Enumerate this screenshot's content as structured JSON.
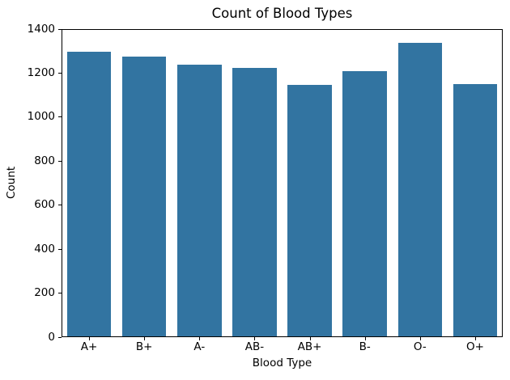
{
  "chart_data": {
    "type": "bar",
    "title": "Count of Blood Types",
    "xlabel": "Blood Type",
    "ylabel": "Count",
    "categories": [
      "A+",
      "B+",
      "A-",
      "AB-",
      "AB+",
      "B-",
      "O-",
      "O+"
    ],
    "values": [
      1300,
      1280,
      1243,
      1228,
      1150,
      1211,
      1342,
      1152
    ],
    "ylim": [
      0,
      1400
    ],
    "yticks": [
      0,
      200,
      400,
      600,
      800,
      1000,
      1200,
      1400
    ],
    "bar_color": "#3274a1",
    "text_color": "#000000",
    "spine_color": "#000000",
    "grid": false,
    "legend": "none",
    "bar_width_fraction": 0.8
  }
}
